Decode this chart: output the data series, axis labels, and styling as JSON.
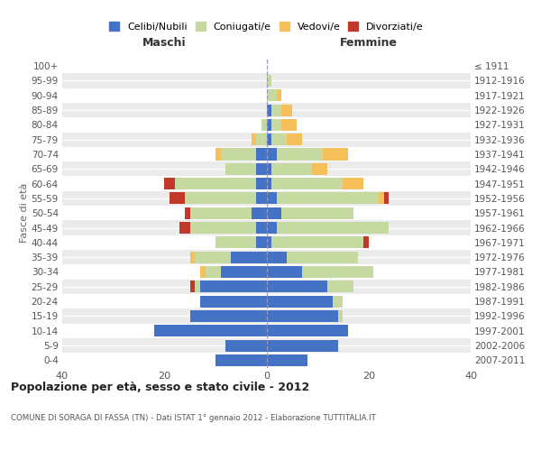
{
  "age_groups": [
    "0-4",
    "5-9",
    "10-14",
    "15-19",
    "20-24",
    "25-29",
    "30-34",
    "35-39",
    "40-44",
    "45-49",
    "50-54",
    "55-59",
    "60-64",
    "65-69",
    "70-74",
    "75-79",
    "80-84",
    "85-89",
    "90-94",
    "95-99",
    "100+"
  ],
  "birth_years": [
    "2007-2011",
    "2002-2006",
    "1997-2001",
    "1992-1996",
    "1987-1991",
    "1982-1986",
    "1977-1981",
    "1972-1976",
    "1967-1971",
    "1962-1966",
    "1957-1961",
    "1952-1956",
    "1947-1951",
    "1942-1946",
    "1937-1941",
    "1932-1936",
    "1927-1931",
    "1922-1926",
    "1917-1921",
    "1912-1916",
    "≤ 1911"
  ],
  "males_celibe": [
    10,
    8,
    22,
    15,
    13,
    13,
    9,
    7,
    2,
    2,
    3,
    2,
    2,
    2,
    2,
    0,
    0,
    0,
    0,
    0,
    0
  ],
  "males_coniugato": [
    0,
    0,
    0,
    0,
    0,
    1,
    3,
    7,
    8,
    13,
    12,
    14,
    16,
    6,
    7,
    2,
    1,
    0,
    0,
    0,
    0
  ],
  "males_vedovo": [
    0,
    0,
    0,
    0,
    0,
    0,
    1,
    1,
    0,
    0,
    0,
    0,
    0,
    0,
    1,
    1,
    0,
    0,
    0,
    0,
    0
  ],
  "males_divorziato": [
    0,
    0,
    0,
    0,
    0,
    1,
    0,
    0,
    0,
    2,
    1,
    3,
    2,
    0,
    0,
    0,
    0,
    0,
    0,
    0,
    0
  ],
  "females_nubile": [
    8,
    14,
    16,
    14,
    13,
    12,
    7,
    4,
    1,
    2,
    3,
    2,
    1,
    1,
    2,
    1,
    1,
    1,
    0,
    0,
    0
  ],
  "females_coniugata": [
    0,
    0,
    0,
    1,
    2,
    5,
    14,
    14,
    18,
    22,
    14,
    20,
    14,
    8,
    9,
    3,
    2,
    2,
    2,
    1,
    0
  ],
  "females_vedova": [
    0,
    0,
    0,
    0,
    0,
    0,
    0,
    0,
    0,
    0,
    0,
    1,
    4,
    3,
    5,
    3,
    3,
    2,
    1,
    0,
    0
  ],
  "females_divorziata": [
    0,
    0,
    0,
    0,
    0,
    0,
    0,
    0,
    1,
    0,
    0,
    1,
    0,
    0,
    0,
    0,
    0,
    0,
    0,
    0,
    0
  ],
  "col_celibe": "#4472c4",
  "col_coniugato": "#c5d9a0",
  "col_vedovo": "#f5bf5a",
  "col_divorziato": "#c0392b",
  "xlim": 40,
  "title1": "Popolazione per età, sesso e stato civile - 2012",
  "title2": "COMUNE DI SORAGA DI FASSA (TN) - Dati ISTAT 1° gennaio 2012 - Elaborazione TUTTITALIA.IT",
  "legend_labels": [
    "Celibi/Nubili",
    "Coniugati/e",
    "Vedovi/e",
    "Divorziati/e"
  ],
  "label_maschi": "Maschi",
  "label_femmine": "Femmine",
  "ylabel_left": "Fasce di età",
  "bg_color": "#f0f0f0",
  "xtick_labels": [
    "40",
    "20",
    "0",
    "20",
    "40"
  ]
}
